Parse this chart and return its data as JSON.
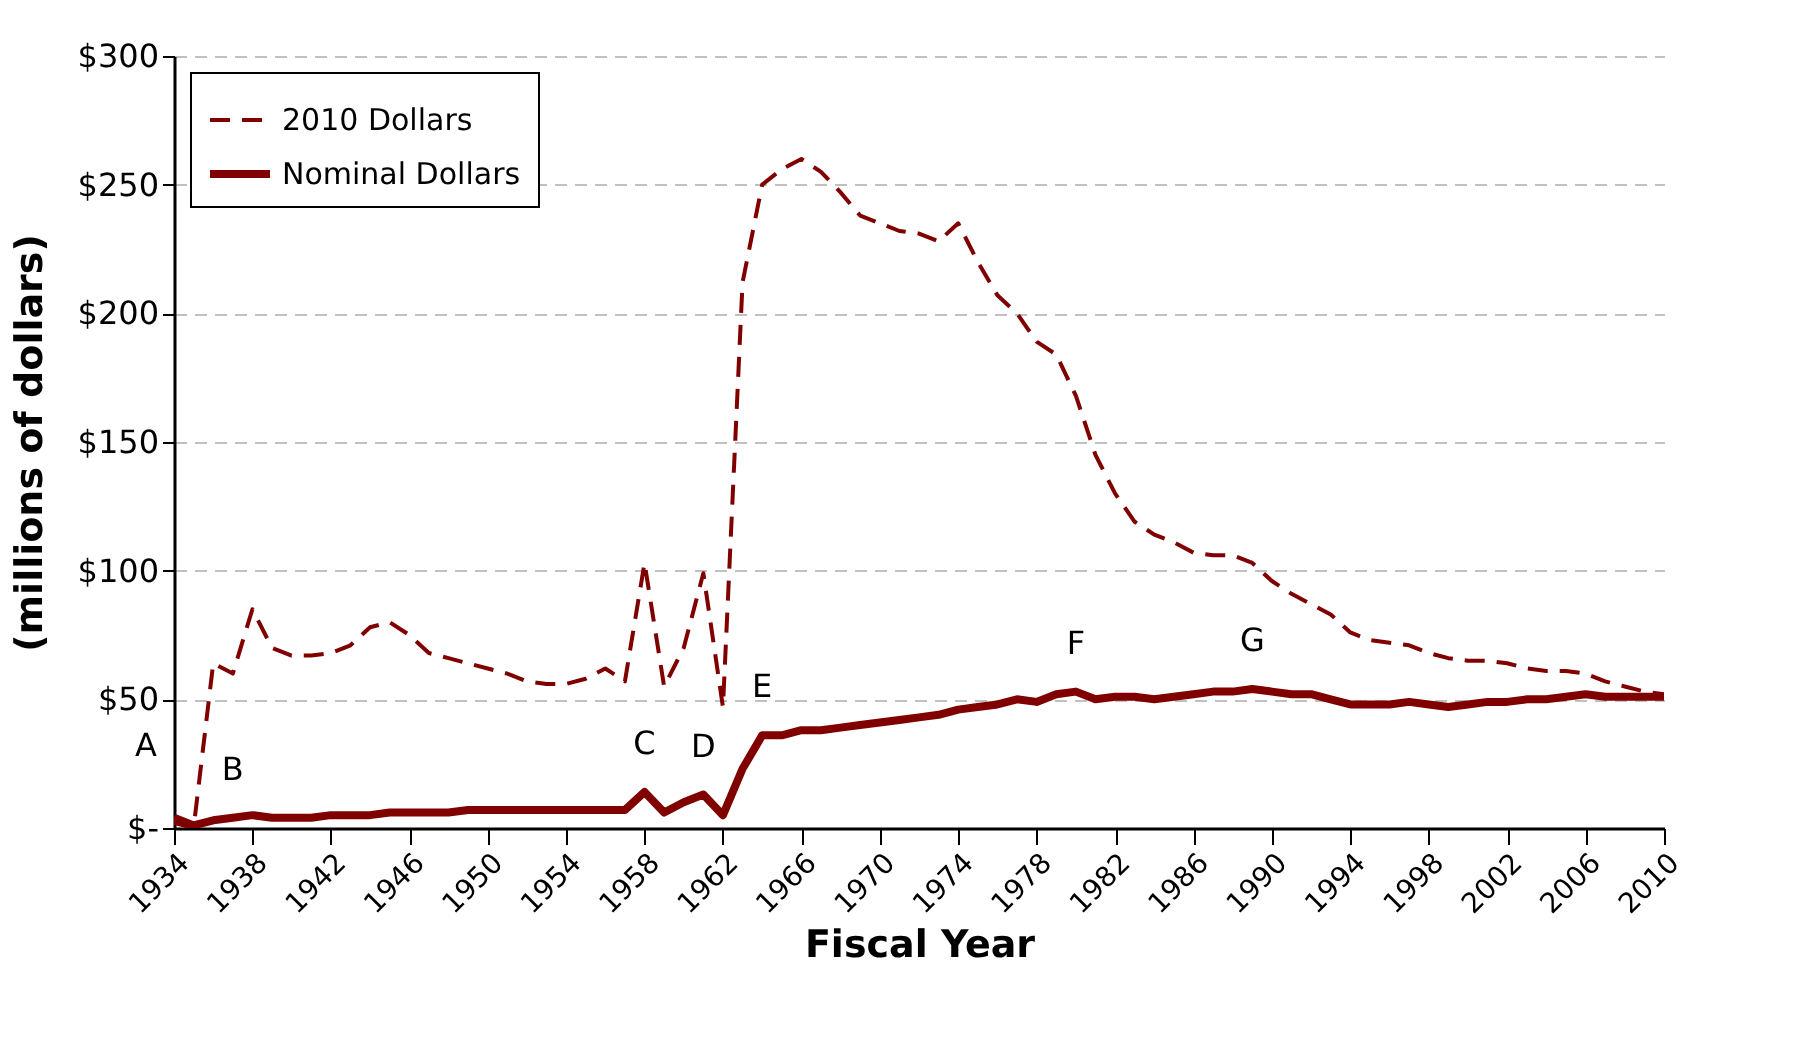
{
  "chart_data": {
    "type": "line",
    "xlabel": "Fiscal Year",
    "ylabel": "(millions of dollars)",
    "xlim": [
      1934,
      2010
    ],
    "xticks": [
      1934,
      1938,
      1942,
      1946,
      1950,
      1954,
      1958,
      1962,
      1966,
      1970,
      1974,
      1978,
      1982,
      1986,
      1990,
      1994,
      1998,
      2002,
      2006,
      2010
    ],
    "ylim": [
      0,
      300
    ],
    "yticks": [
      {
        "value": 0,
        "label": "$-"
      },
      {
        "value": 50,
        "label": "$50"
      },
      {
        "value": 100,
        "label": "$100"
      },
      {
        "value": 150,
        "label": "$150"
      },
      {
        "value": 200,
        "label": "$200"
      },
      {
        "value": 250,
        "label": "$250"
      },
      {
        "value": 300,
        "label": "$300"
      }
    ],
    "grid": "y",
    "legend": "top left",
    "x": [
      1934,
      1935,
      1936,
      1937,
      1938,
      1939,
      1940,
      1941,
      1942,
      1943,
      1944,
      1945,
      1946,
      1947,
      1948,
      1949,
      1950,
      1951,
      1952,
      1953,
      1954,
      1955,
      1956,
      1957,
      1958,
      1959,
      1960,
      1961,
      1962,
      1963,
      1964,
      1965,
      1966,
      1967,
      1968,
      1969,
      1970,
      1971,
      1972,
      1973,
      1974,
      1975,
      1976,
      1977,
      1978,
      1979,
      1980,
      1981,
      1982,
      1983,
      1984,
      1985,
      1986,
      1987,
      1988,
      1989,
      1990,
      1991,
      1992,
      1993,
      1994,
      1995,
      1996,
      1997,
      1998,
      1999,
      2000,
      2001,
      2002,
      2003,
      2004,
      2005,
      2006,
      2007,
      2008,
      2009,
      2010
    ],
    "series": [
      {
        "name": "2010 Dollars",
        "color": "#800000",
        "line_style": "dashed",
        "values": [
          2,
          0,
          64,
          60,
          85,
          70,
          67,
          67,
          68,
          71,
          78,
          80,
          75,
          68,
          66,
          64,
          62,
          60,
          57,
          56,
          56,
          58,
          62,
          57,
          103,
          55,
          70,
          99,
          47,
          212,
          250,
          256,
          260,
          255,
          247,
          238,
          235,
          232,
          231,
          228,
          235,
          220,
          207,
          200,
          189,
          184,
          168,
          145,
          130,
          119,
          114,
          111,
          107,
          106,
          106,
          103,
          96,
          91,
          87,
          83,
          76,
          73,
          72,
          71,
          68,
          66,
          65,
          65,
          64,
          62,
          61,
          61,
          60,
          57,
          55,
          53,
          52
        ]
      },
      {
        "name": "Nominal Dollars",
        "color": "#800000",
        "line_style": "solid",
        "values": [
          4,
          1,
          3,
          4,
          5,
          4,
          4,
          4,
          5,
          5,
          5,
          6,
          6,
          6,
          6,
          7,
          7,
          7,
          7,
          7,
          7,
          7,
          7,
          7,
          14,
          6,
          10,
          13,
          5,
          23,
          36,
          36,
          38,
          38,
          39,
          40,
          41,
          42,
          43,
          44,
          46,
          47,
          48,
          50,
          49,
          52,
          53,
          50,
          51,
          51,
          50,
          51,
          52,
          53,
          53,
          54,
          53,
          52,
          52,
          50,
          48,
          48,
          48,
          49,
          48,
          47,
          48,
          49,
          49,
          50,
          50,
          51,
          52,
          51,
          51,
          51,
          51
        ]
      }
    ],
    "annotations": [
      {
        "text": "A",
        "x": 1934,
        "y": 4
      },
      {
        "text": "B",
        "x": 1937,
        "y": 4
      },
      {
        "text": "C",
        "x": 1958,
        "y": 14
      },
      {
        "text": "D",
        "x": 1961,
        "y": 13
      },
      {
        "text": "E",
        "x": 1964,
        "y": 36
      },
      {
        "text": "F",
        "x": 1980,
        "y": 53
      },
      {
        "text": "G",
        "x": 1989,
        "y": 54
      }
    ]
  }
}
